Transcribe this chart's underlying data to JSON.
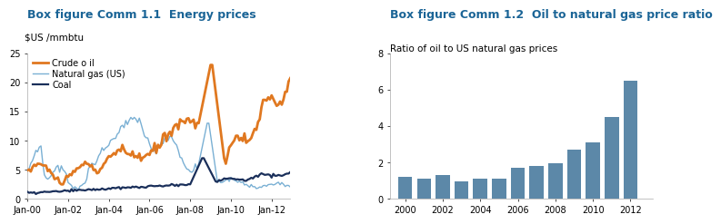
{
  "title1": "Box figure Comm 1.1  Energy prices",
  "title2": "Box figure Comm 1.2  Oil to natural gas price ratio",
  "ylabel1": "$US /mmbtu",
  "subtitle2": "Ratio of oil to US natural gas prices",
  "title_color": "#1a6496",
  "title_fontsize": 9.0,
  "subtitle_fontsize": 7.5,
  "ylabel_fontsize": 7.5,
  "tick_fontsize": 7.0,
  "crude_oil_color": "#e07820",
  "natural_gas_color": "#7ab0d4",
  "coal_color": "#1a2f5a",
  "bar_color": "#5c88a8",
  "bar_years": [
    2000,
    2001,
    2002,
    2003,
    2004,
    2005,
    2006,
    2007,
    2008,
    2009,
    2010,
    2011,
    2012
  ],
  "bar_values": [
    1.2,
    1.1,
    1.3,
    0.95,
    1.1,
    1.1,
    1.7,
    1.8,
    1.95,
    2.7,
    3.1,
    4.5,
    6.5
  ],
  "ylim1": [
    0,
    25
  ],
  "ylim2": [
    0.0,
    8.0
  ],
  "yticks1": [
    0,
    5,
    10,
    15,
    20,
    25
  ],
  "yticks2": [
    0.0,
    2.0,
    4.0,
    6.0,
    8.0
  ],
  "line_lw_oil": 2.0,
  "line_lw_gas": 1.0,
  "line_lw_coal": 1.6,
  "xtick_positions": [
    0,
    24,
    48,
    72,
    96,
    120,
    144
  ],
  "xtick_labels": [
    "Jan-00",
    "Jan-02",
    "Jan-04",
    "Jan-06",
    "Jan-08",
    "Jan-10",
    "Jan-12"
  ]
}
